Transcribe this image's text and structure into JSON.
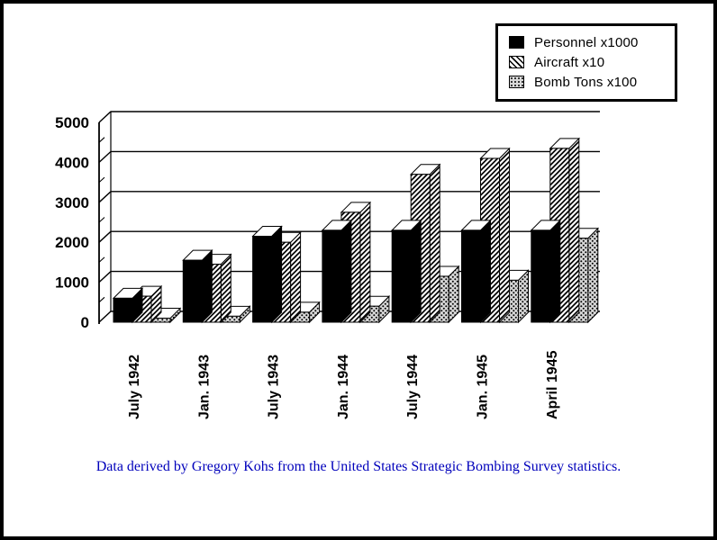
{
  "chart_data": {
    "type": "bar",
    "projection": "3d",
    "title": "",
    "xlabel": "",
    "ylabel": "",
    "categories": [
      "July 1942",
      "Jan. 1943",
      "July 1943",
      "Jan. 1944",
      "July 1944",
      "Jan. 1945",
      "April 1945"
    ],
    "series": [
      {
        "name": "Personnel x1000",
        "pattern": "solid-black",
        "values": [
          600,
          1550,
          2150,
          2300,
          2300,
          2300,
          2300
        ]
      },
      {
        "name": "Aircraft x10",
        "pattern": "diagonal-hatch",
        "values": [
          650,
          1450,
          2000,
          2750,
          3700,
          4100,
          4350
        ]
      },
      {
        "name": "Bomb Tons x100",
        "pattern": "dots",
        "values": [
          100,
          150,
          250,
          400,
          1150,
          1050,
          2100
        ]
      }
    ],
    "ylim": [
      0,
      5000
    ],
    "ytick_step": 1000,
    "yticks": [
      "0",
      "1000",
      "2000",
      "3000",
      "4000",
      "5000"
    ],
    "grid": true,
    "legend_position": "top-right"
  },
  "caption": {
    "text": "Data derived by Gregory Kohs from the United States Strategic Bombing Survey statistics.",
    "color": "#0000bb"
  }
}
